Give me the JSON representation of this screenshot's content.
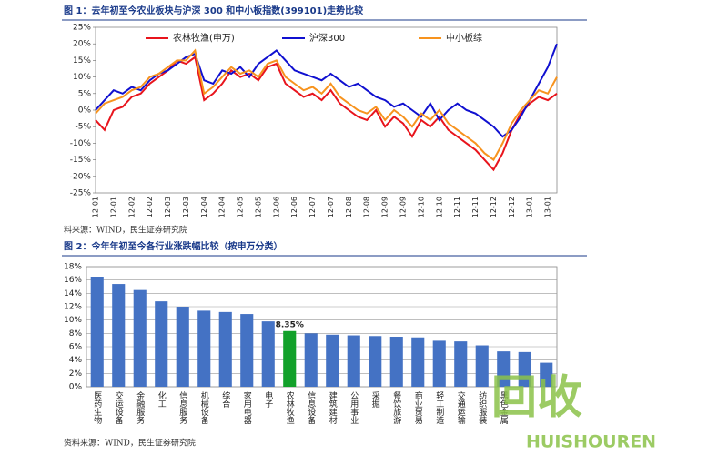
{
  "chart_data": [
    {
      "type": "line",
      "title": "图 1：去年初至今农业板块与沪深 300 和中小板指数(399101)走势比较",
      "source": "料来源：WIND，民生证券研究院",
      "categories": [
        "12-01",
        null,
        "12-01",
        null,
        "12-02",
        null,
        "12-02",
        null,
        "12-03",
        null,
        "12-03",
        null,
        "12-04",
        null,
        "12-04",
        null,
        "12-05",
        null,
        "12-05",
        null,
        "12-06",
        null,
        "12-06",
        null,
        "12-07",
        null,
        "12-07",
        null,
        "12-08",
        null,
        "12-08",
        null,
        "12-09",
        null,
        "12-09",
        null,
        "12-10",
        null,
        "12-10",
        null,
        "12-11",
        null,
        "12-11",
        null,
        "12-12",
        null,
        "12-12",
        null,
        "13-01",
        null,
        "13-01",
        null
      ],
      "series": [
        {
          "name": "农林牧渔(申万)",
          "color": "#e8141c",
          "values": [
            -3,
            -6,
            0,
            1,
            4,
            5,
            8,
            10,
            12,
            15,
            14,
            16,
            3,
            5,
            8,
            12,
            10,
            11,
            9,
            13,
            14,
            8,
            6,
            4,
            5,
            3,
            6,
            2,
            0,
            -2,
            -3,
            0,
            -5,
            -2,
            -4,
            -8,
            -3,
            -5,
            -2,
            -6,
            -8,
            -10,
            -12,
            -15,
            -18,
            -13,
            -6,
            -1,
            2,
            4,
            3,
            5
          ]
        },
        {
          "name": "沪深300",
          "color": "#1010d0",
          "values": [
            0,
            3,
            6,
            5,
            7,
            6,
            9,
            11,
            12,
            14,
            16,
            17,
            9,
            8,
            12,
            11,
            13,
            10,
            14,
            16,
            18,
            15,
            12,
            11,
            10,
            9,
            11,
            9,
            7,
            8,
            6,
            4,
            3,
            1,
            2,
            0,
            -2,
            2,
            -3,
            0,
            2,
            0,
            -1,
            -3,
            -5,
            -8,
            -6,
            -2,
            3,
            8,
            13,
            20
          ]
        },
        {
          "name": "中小板综",
          "color": "#f7931e",
          "values": [
            -1,
            2,
            3,
            4,
            6,
            7,
            10,
            11,
            13,
            15,
            15,
            18,
            5,
            7,
            10,
            13,
            11,
            12,
            10,
            14,
            15,
            10,
            8,
            6,
            7,
            5,
            8,
            4,
            2,
            0,
            -1,
            1,
            -3,
            0,
            -2,
            -5,
            -1,
            -3,
            0,
            -4,
            -6,
            -8,
            -10,
            -13,
            -15,
            -10,
            -4,
            0,
            3,
            6,
            5,
            10
          ]
        }
      ],
      "ylim": [
        -25,
        25
      ],
      "yticks": [
        {
          "value": -25,
          "label": "-25%"
        },
        {
          "value": -20,
          "label": "-20%"
        },
        {
          "value": -15,
          "label": "-15%"
        },
        {
          "value": -10,
          "label": "-10%"
        },
        {
          "value": -5,
          "label": "-5%"
        },
        {
          "value": 0,
          "label": "0%"
        },
        {
          "value": 5,
          "label": "5%"
        },
        {
          "value": 10,
          "label": "10%"
        },
        {
          "value": 15,
          "label": "15%"
        },
        {
          "value": 20,
          "label": "20%"
        },
        {
          "value": 25,
          "label": "25%"
        }
      ],
      "legend": "top"
    },
    {
      "type": "bar",
      "title": "图 2：今年年初至今各行业涨跌幅比较（按申万分类）",
      "source": "资料来源：WIND，民生证券研究院",
      "categories": [
        "医药生物",
        "交运设备",
        "金融服务",
        "化工",
        "信息服务",
        "机械设备",
        "综合",
        "家用电器",
        "电子",
        "农林牧渔",
        "信息设备",
        "建筑建材",
        "公用事业",
        "采掘",
        "餐饮旅游",
        "商业贸易",
        "轻工制造",
        "交通运输",
        "纺织服装",
        "黑色金属",
        null,
        null
      ],
      "values": [
        16.5,
        15.4,
        14.5,
        12.8,
        12.0,
        11.4,
        11.2,
        10.9,
        9.8,
        8.35,
        8.0,
        7.8,
        7.7,
        7.6,
        7.5,
        7.4,
        6.9,
        6.8,
        6.2,
        5.3,
        5.2,
        3.6
      ],
      "value_labels": [
        null,
        null,
        null,
        null,
        null,
        null,
        null,
        null,
        null,
        "8.35%",
        null,
        null,
        null,
        null,
        null,
        null,
        null,
        null,
        null,
        null,
        null,
        null
      ],
      "colors": [
        "#4472c4",
        "#4472c4",
        "#4472c4",
        "#4472c4",
        "#4472c4",
        "#4472c4",
        "#4472c4",
        "#4472c4",
        "#4472c4",
        "#12a12a",
        "#4472c4",
        "#4472c4",
        "#4472c4",
        "#4472c4",
        "#4472c4",
        "#4472c4",
        "#4472c4",
        "#4472c4",
        "#4472c4",
        "#4472c4",
        "#4472c4",
        "#4472c4"
      ],
      "ylim": [
        0,
        18
      ],
      "yticks": [
        {
          "value": 0,
          "label": "0%"
        },
        {
          "value": 2,
          "label": "2%"
        },
        {
          "value": 4,
          "label": "4%"
        },
        {
          "value": 6,
          "label": "6%"
        },
        {
          "value": 8,
          "label": "8%"
        },
        {
          "value": 10,
          "label": "10%"
        },
        {
          "value": 12,
          "label": "12%"
        },
        {
          "value": 14,
          "label": "14%"
        },
        {
          "value": 16,
          "label": "16%"
        },
        {
          "value": 18,
          "label": "18%"
        }
      ],
      "grid": true
    }
  ],
  "watermark": {
    "text": "回收",
    "subtext": "HUISHOUREN"
  }
}
